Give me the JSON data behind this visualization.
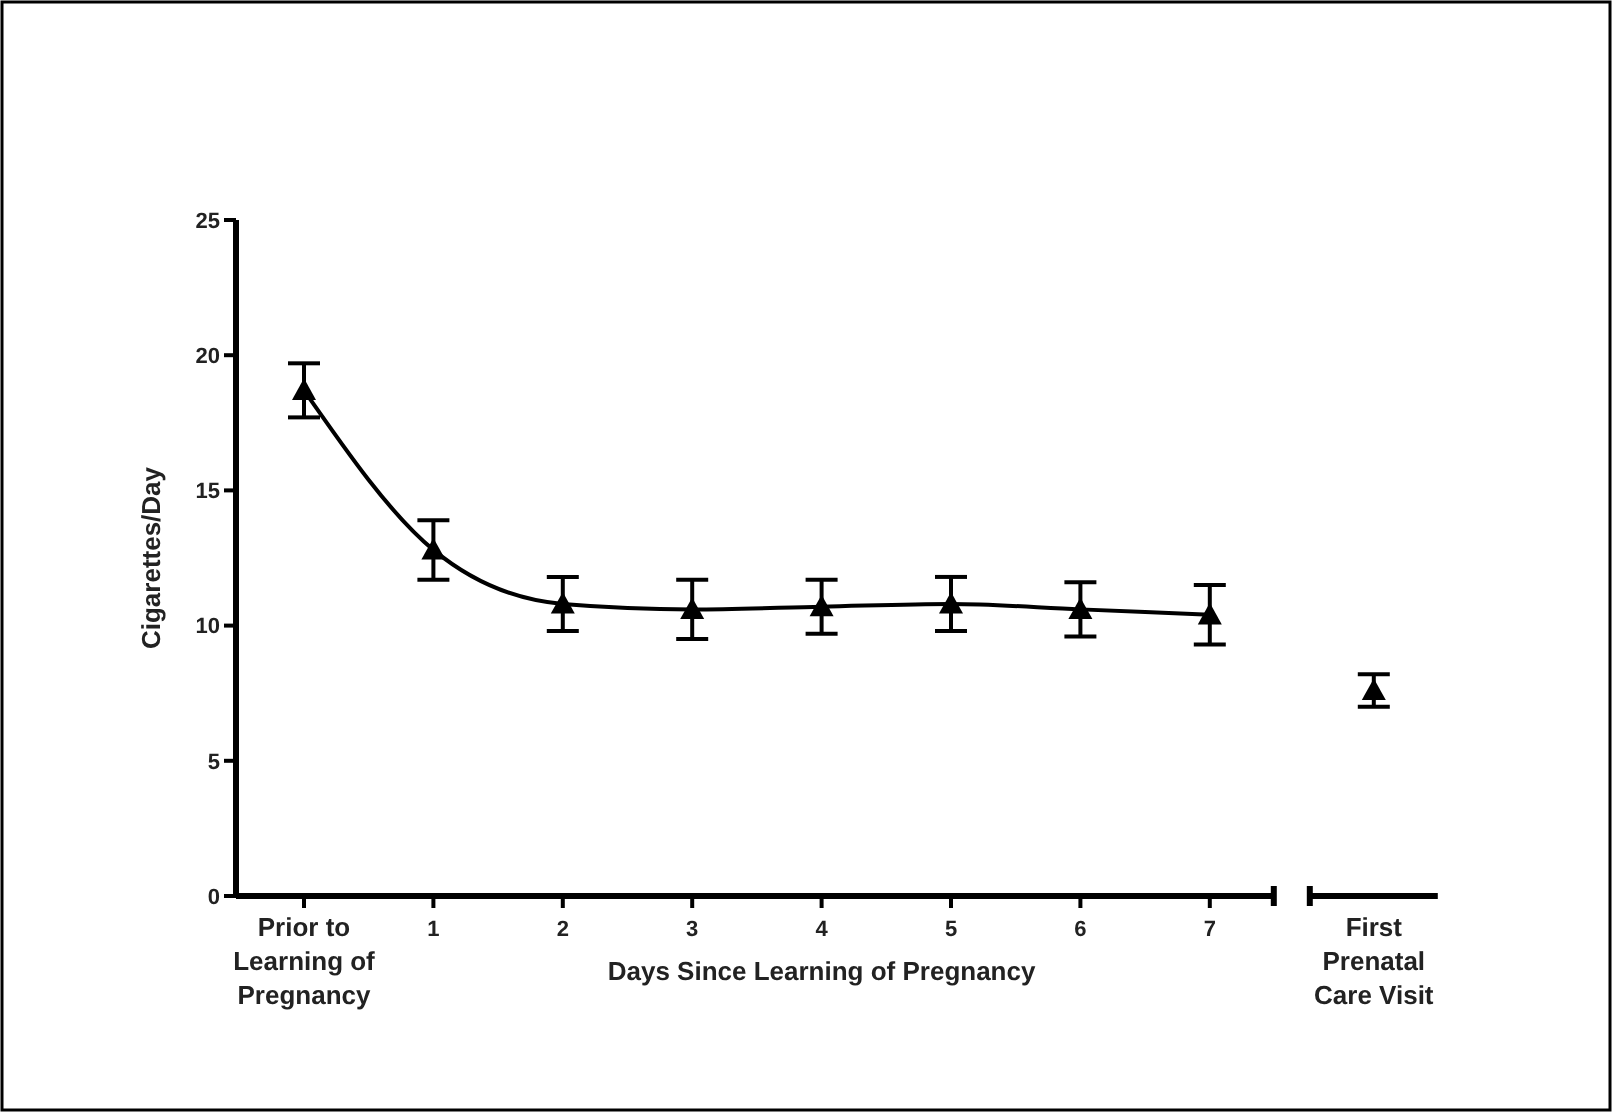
{
  "chart_data": {
    "type": "line",
    "ylabel": "Cigarettes/Day",
    "xlabel": "Days Since Learning of Pregnancy",
    "categories": [
      "Prior to Learning of Pregnancy",
      "1",
      "2",
      "3",
      "4",
      "5",
      "6",
      "7",
      "First Prenatal Care Visit"
    ],
    "ylim": [
      0,
      25
    ],
    "yticks": [
      0,
      5,
      10,
      15,
      20,
      25
    ],
    "grid": false,
    "marker": "triangle",
    "line_style": "solid",
    "series": [
      {
        "color": "#000000",
        "values": [
          18.7,
          12.8,
          10.8,
          10.6,
          10.7,
          10.8,
          10.6,
          10.4,
          null
        ],
        "errors": [
          1,
          1.1,
          1,
          1.1,
          1,
          1,
          1,
          1.1,
          null
        ]
      },
      {
        "type": "scatter",
        "color": "#000000",
        "values": [
          null,
          null,
          null,
          null,
          null,
          null,
          null,
          null,
          7.6
        ],
        "errors": [
          null,
          null,
          null,
          null,
          null,
          null,
          null,
          null,
          0.6
        ]
      }
    ]
  }
}
